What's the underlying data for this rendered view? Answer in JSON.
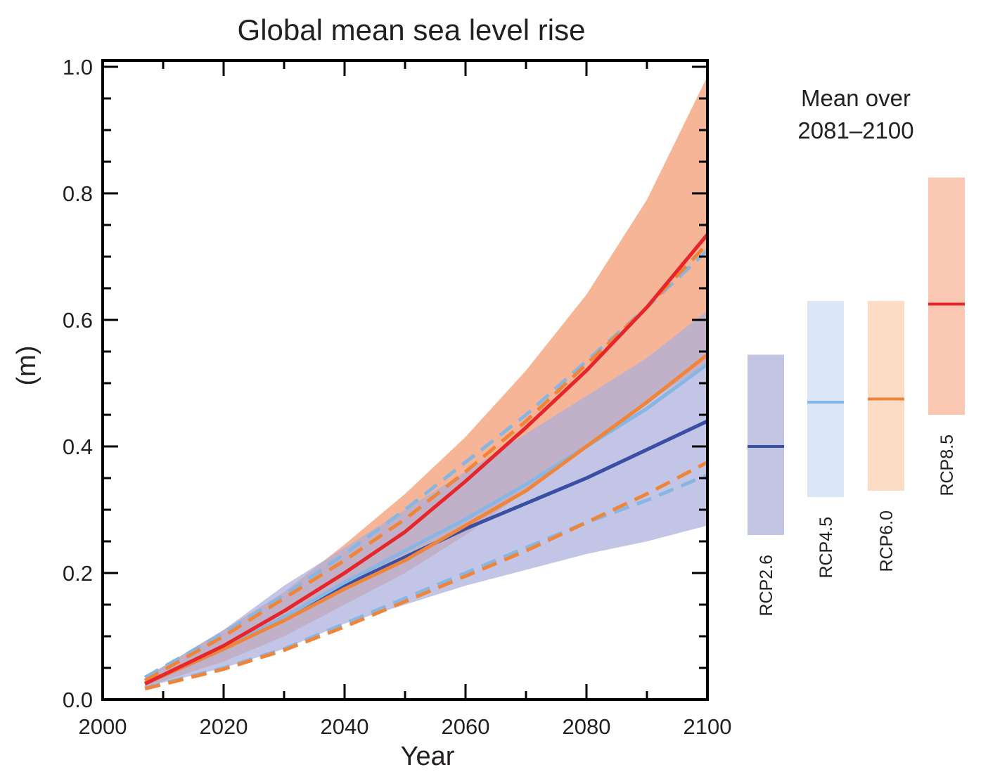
{
  "chart_data": {
    "type": "line",
    "title": "Global mean sea level rise",
    "xlabel": "Year",
    "ylabel": "(m)",
    "xlim": [
      2000,
      2100
    ],
    "ylim": [
      0.0,
      1.0
    ],
    "x_ticks": [
      2000,
      2020,
      2040,
      2060,
      2080,
      2100
    ],
    "x_tick_labels": [
      "2000",
      "2020",
      "2040",
      "2060",
      "2080",
      "2100"
    ],
    "y_ticks": [
      0.0,
      0.2,
      0.4,
      0.6,
      0.8,
      1.0
    ],
    "y_tick_labels": [
      "0.0",
      "0.2",
      "0.4",
      "0.6",
      "0.8",
      "1.0"
    ],
    "x": [
      2007,
      2020,
      2030,
      2040,
      2050,
      2060,
      2070,
      2080,
      2090,
      2100
    ],
    "series": [
      {
        "color": "#3a4fa3",
        "style": "solid",
        "values": [
          0.025,
          0.08,
          0.13,
          0.18,
          0.225,
          0.27,
          0.31,
          0.35,
          0.395,
          0.44
        ],
        "range_low": [
          0.02,
          0.05,
          0.08,
          0.12,
          0.15,
          0.18,
          0.205,
          0.23,
          0.25,
          0.275
        ],
        "range_high": [
          0.035,
          0.11,
          0.18,
          0.24,
          0.3,
          0.36,
          0.42,
          0.48,
          0.54,
          0.615
        ],
        "range_color": "#aaaedb"
      },
      {
        "color": "#88b6e3",
        "style": "solid",
        "values": [
          0.025,
          0.08,
          0.13,
          0.185,
          0.235,
          0.285,
          0.34,
          0.4,
          0.46,
          0.53
        ]
      },
      {
        "color": "#f0853a",
        "style": "solid",
        "values": [
          0.025,
          0.08,
          0.125,
          0.175,
          0.22,
          0.275,
          0.33,
          0.4,
          0.47,
          0.545
        ]
      },
      {
        "color": "#e6262a",
        "style": "solid",
        "values": [
          0.025,
          0.085,
          0.14,
          0.2,
          0.265,
          0.345,
          0.43,
          0.52,
          0.62,
          0.735
        ],
        "range_low": [
          0.02,
          0.06,
          0.1,
          0.15,
          0.2,
          0.26,
          0.33,
          0.4,
          0.47,
          0.53
        ],
        "range_high": [
          0.035,
          0.11,
          0.17,
          0.245,
          0.325,
          0.415,
          0.52,
          0.64,
          0.79,
          0.985
        ],
        "range_color": "#f6b597"
      },
      {
        "color": "#88b6e3",
        "style": "dashed",
        "values": [
          0.035,
          0.105,
          0.165,
          0.23,
          0.3,
          0.375,
          0.45,
          0.535,
          0.62,
          0.71
        ]
      },
      {
        "color": "#88b6e3",
        "style": "dashed",
        "values": [
          0.018,
          0.05,
          0.08,
          0.12,
          0.16,
          0.2,
          0.24,
          0.28,
          0.315,
          0.355
        ]
      },
      {
        "color": "#f0853a",
        "style": "dashed",
        "values": [
          0.03,
          0.1,
          0.16,
          0.22,
          0.285,
          0.36,
          0.44,
          0.53,
          0.62,
          0.72
        ]
      },
      {
        "color": "#f0853a",
        "style": "dashed",
        "values": [
          0.017,
          0.048,
          0.078,
          0.115,
          0.155,
          0.195,
          0.235,
          0.28,
          0.325,
          0.375
        ]
      }
    ],
    "side_panel": {
      "title_lines": [
        "Mean over",
        "2081–2100"
      ],
      "bars": [
        {
          "name": "RCP2.6",
          "low": 0.26,
          "high": 0.545,
          "mean": 0.4,
          "fill": "#c3c5e3",
          "line": "#3a4fa3"
        },
        {
          "name": "RCP4.5",
          "low": 0.32,
          "high": 0.63,
          "mean": 0.47,
          "fill": "#dbe7f6",
          "line": "#88b6e3"
        },
        {
          "name": "RCP6.0",
          "low": 0.33,
          "high": 0.63,
          "mean": 0.475,
          "fill": "#fcdcc4",
          "line": "#f0853a"
        },
        {
          "name": "RCP8.5",
          "low": 0.45,
          "high": 0.825,
          "mean": 0.625,
          "fill": "#f9c7b2",
          "line": "#e6262a"
        }
      ]
    },
    "grid": false,
    "legend": "none"
  }
}
